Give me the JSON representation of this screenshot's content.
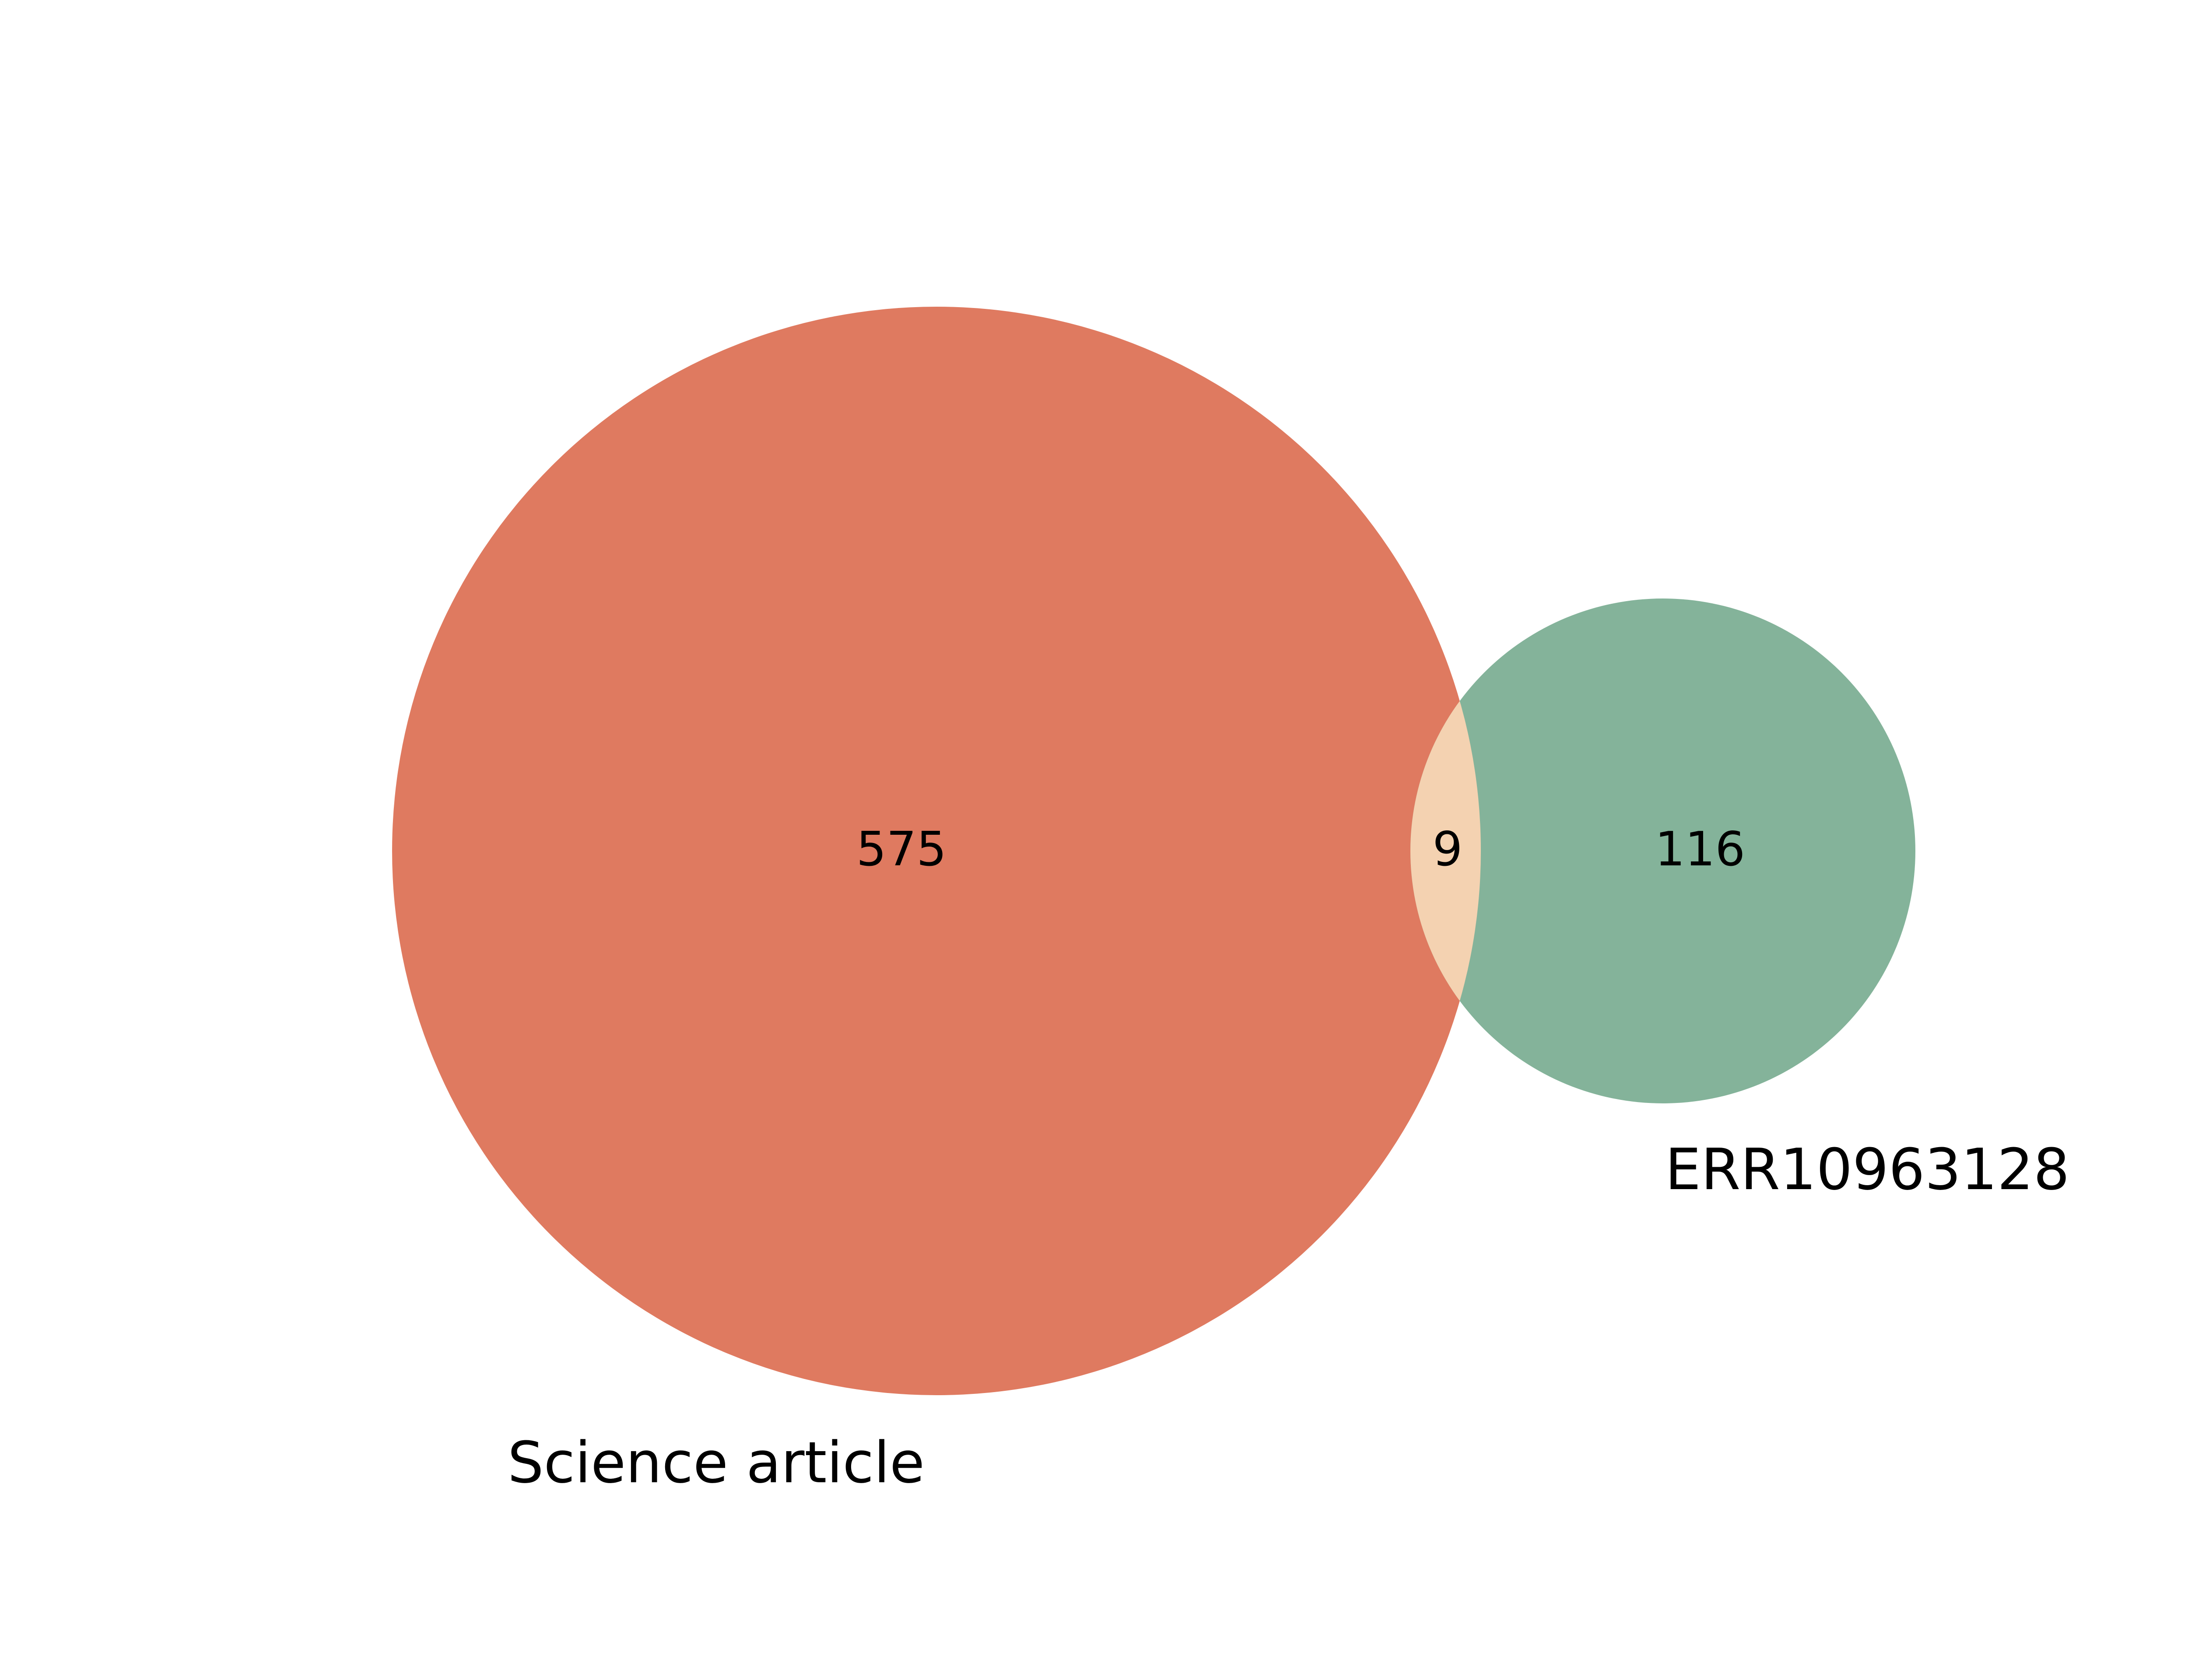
{
  "venn": {
    "sets": [
      {
        "name": "Science article",
        "only_count": "575",
        "color": "#df7a60"
      },
      {
        "name": "ERR10963128",
        "only_count": "116",
        "color": "#84b39a"
      }
    ],
    "intersection": {
      "count": "9",
      "color": "#f4d2b1"
    }
  }
}
